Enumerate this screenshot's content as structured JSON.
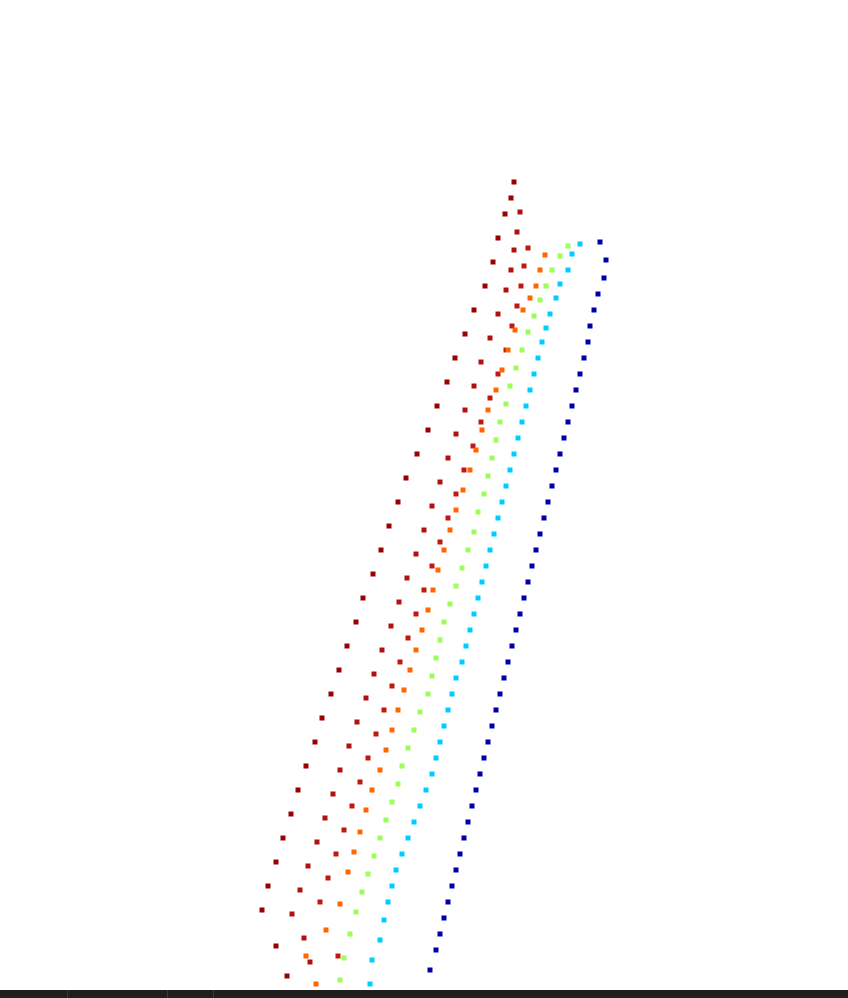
{
  "chart_data": {
    "type": "scatter",
    "title": "",
    "xlabel": "",
    "ylabel": "",
    "grid": false,
    "legend": "none",
    "marker": "square",
    "colormap": "jet",
    "series": [
      {
        "color": "#990000",
        "points": [
          [
            514,
            182
          ],
          [
            511,
            198
          ],
          [
            505,
            214
          ],
          [
            498,
            238
          ],
          [
            493,
            262
          ],
          [
            485,
            286
          ],
          [
            474,
            310
          ],
          [
            465,
            334
          ],
          [
            455,
            358
          ],
          [
            447,
            382
          ],
          [
            437,
            406
          ],
          [
            428,
            430
          ],
          [
            417,
            454
          ],
          [
            406,
            478
          ],
          [
            398,
            502
          ],
          [
            389,
            526
          ],
          [
            381,
            550
          ],
          [
            373,
            574
          ],
          [
            363,
            598
          ],
          [
            356,
            622
          ],
          [
            347,
            646
          ],
          [
            339,
            670
          ],
          [
            331,
            694
          ],
          [
            322,
            718
          ],
          [
            315,
            742
          ],
          [
            306,
            766
          ],
          [
            298,
            790
          ],
          [
            291,
            814
          ],
          [
            283,
            838
          ],
          [
            276,
            862
          ],
          [
            268,
            886
          ],
          [
            262,
            910
          ],
          [
            276,
            946
          ],
          [
            287,
            976
          ]
        ]
      },
      {
        "color": "#b01010",
        "points": [
          [
            520,
            212
          ],
          [
            517,
            232
          ],
          [
            514,
            250
          ],
          [
            511,
            270
          ],
          [
            506,
            290
          ],
          [
            498,
            314
          ],
          [
            490,
            338
          ],
          [
            481,
            362
          ],
          [
            474,
            386
          ],
          [
            465,
            410
          ],
          [
            456,
            434
          ],
          [
            448,
            458
          ],
          [
            440,
            482
          ],
          [
            432,
            506
          ],
          [
            424,
            530
          ],
          [
            416,
            554
          ],
          [
            407,
            578
          ],
          [
            399,
            602
          ],
          [
            391,
            626
          ],
          [
            382,
            650
          ],
          [
            374,
            674
          ],
          [
            366,
            698
          ],
          [
            357,
            722
          ],
          [
            349,
            746
          ],
          [
            340,
            770
          ],
          [
            333,
            794
          ],
          [
            325,
            818
          ],
          [
            317,
            842
          ],
          [
            308,
            866
          ],
          [
            300,
            890
          ],
          [
            292,
            914
          ],
          [
            304,
            938
          ],
          [
            310,
            962
          ]
        ]
      },
      {
        "color": "#c01a10",
        "points": [
          [
            528,
            248
          ],
          [
            524,
            266
          ],
          [
            521,
            286
          ],
          [
            517,
            306
          ],
          [
            512,
            326
          ],
          [
            506,
            350
          ],
          [
            498,
            374
          ],
          [
            490,
            398
          ],
          [
            481,
            422
          ],
          [
            473,
            446
          ],
          [
            464,
            470
          ],
          [
            456,
            494
          ],
          [
            448,
            518
          ],
          [
            440,
            542
          ],
          [
            432,
            566
          ],
          [
            424,
            590
          ],
          [
            416,
            614
          ],
          [
            408,
            638
          ],
          [
            400,
            662
          ],
          [
            392,
            686
          ],
          [
            384,
            710
          ],
          [
            376,
            734
          ],
          [
            368,
            758
          ],
          [
            360,
            782
          ],
          [
            352,
            806
          ],
          [
            344,
            830
          ],
          [
            336,
            854
          ],
          [
            328,
            878
          ],
          [
            320,
            902
          ],
          [
            326,
            930
          ],
          [
            338,
            956
          ]
        ]
      },
      {
        "color": "#ff6600",
        "points": [
          [
            545,
            255
          ],
          [
            540,
            270
          ],
          [
            536,
            286
          ],
          [
            530,
            298
          ],
          [
            523,
            310
          ],
          [
            515,
            330
          ],
          [
            508,
            350
          ],
          [
            502,
            370
          ],
          [
            496,
            390
          ],
          [
            488,
            410
          ],
          [
            482,
            430
          ],
          [
            476,
            450
          ],
          [
            470,
            470
          ],
          [
            463,
            490
          ],
          [
            456,
            510
          ],
          [
            450,
            530
          ],
          [
            444,
            550
          ],
          [
            438,
            570
          ],
          [
            433,
            590
          ],
          [
            428,
            610
          ],
          [
            422,
            630
          ],
          [
            416,
            650
          ],
          [
            410,
            670
          ],
          [
            404,
            690
          ],
          [
            398,
            710
          ],
          [
            392,
            730
          ],
          [
            386,
            750
          ],
          [
            380,
            770
          ],
          [
            372,
            790
          ],
          [
            366,
            810
          ],
          [
            360,
            832
          ],
          [
            354,
            852
          ],
          [
            348,
            872
          ],
          [
            340,
            904
          ],
          [
            326,
            930
          ],
          [
            306,
            956
          ],
          [
            316,
            984
          ]
        ]
      },
      {
        "color": "#99ff55",
        "points": [
          [
            568,
            246
          ],
          [
            560,
            256
          ],
          [
            552,
            270
          ],
          [
            546,
            286
          ],
          [
            540,
            300
          ],
          [
            534,
            316
          ],
          [
            528,
            332
          ],
          [
            522,
            350
          ],
          [
            516,
            368
          ],
          [
            510,
            386
          ],
          [
            506,
            404
          ],
          [
            500,
            422
          ],
          [
            496,
            440
          ],
          [
            492,
            458
          ],
          [
            488,
            476
          ],
          [
            484,
            494
          ],
          [
            478,
            512
          ],
          [
            474,
            532
          ],
          [
            468,
            550
          ],
          [
            462,
            568
          ],
          [
            456,
            586
          ],
          [
            450,
            604
          ],
          [
            444,
            622
          ],
          [
            440,
            640
          ],
          [
            436,
            658
          ],
          [
            432,
            676
          ],
          [
            428,
            694
          ],
          [
            420,
            712
          ],
          [
            414,
            730
          ],
          [
            408,
            748
          ],
          [
            402,
            766
          ],
          [
            398,
            784
          ],
          [
            392,
            802
          ],
          [
            386,
            820
          ],
          [
            380,
            838
          ],
          [
            374,
            856
          ],
          [
            368,
            874
          ],
          [
            362,
            892
          ],
          [
            356,
            912
          ],
          [
            350,
            934
          ],
          [
            344,
            958
          ],
          [
            340,
            980
          ]
        ]
      },
      {
        "color": "#00ccff",
        "points": [
          [
            580,
            244
          ],
          [
            572,
            254
          ],
          [
            568,
            270
          ],
          [
            560,
            284
          ],
          [
            556,
            298
          ],
          [
            550,
            314
          ],
          [
            546,
            328
          ],
          [
            542,
            342
          ],
          [
            538,
            358
          ],
          [
            534,
            374
          ],
          [
            530,
            390
          ],
          [
            526,
            406
          ],
          [
            522,
            422
          ],
          [
            518,
            438
          ],
          [
            514,
            454
          ],
          [
            510,
            470
          ],
          [
            506,
            486
          ],
          [
            502,
            502
          ],
          [
            498,
            518
          ],
          [
            494,
            534
          ],
          [
            490,
            550
          ],
          [
            486,
            566
          ],
          [
            482,
            582
          ],
          [
            478,
            598
          ],
          [
            474,
            614
          ],
          [
            470,
            630
          ],
          [
            466,
            646
          ],
          [
            462,
            662
          ],
          [
            456,
            678
          ],
          [
            452,
            694
          ],
          [
            448,
            710
          ],
          [
            444,
            726
          ],
          [
            440,
            742
          ],
          [
            436,
            758
          ],
          [
            432,
            774
          ],
          [
            426,
            790
          ],
          [
            420,
            806
          ],
          [
            414,
            822
          ],
          [
            408,
            838
          ],
          [
            402,
            854
          ],
          [
            396,
            870
          ],
          [
            392,
            886
          ],
          [
            388,
            902
          ],
          [
            384,
            920
          ],
          [
            380,
            940
          ],
          [
            372,
            960
          ],
          [
            370,
            984
          ]
        ]
      },
      {
        "color": "#0000aa",
        "points": [
          [
            600,
            242
          ],
          [
            606,
            260
          ],
          [
            604,
            278
          ],
          [
            598,
            294
          ],
          [
            594,
            310
          ],
          [
            590,
            326
          ],
          [
            588,
            342
          ],
          [
            584,
            358
          ],
          [
            580,
            374
          ],
          [
            576,
            390
          ],
          [
            572,
            406
          ],
          [
            568,
            422
          ],
          [
            564,
            438
          ],
          [
            560,
            454
          ],
          [
            556,
            470
          ],
          [
            552,
            486
          ],
          [
            548,
            502
          ],
          [
            544,
            518
          ],
          [
            540,
            534
          ],
          [
            536,
            550
          ],
          [
            532,
            566
          ],
          [
            528,
            582
          ],
          [
            524,
            598
          ],
          [
            520,
            614
          ],
          [
            516,
            630
          ],
          [
            512,
            646
          ],
          [
            508,
            662
          ],
          [
            504,
            678
          ],
          [
            500,
            694
          ],
          [
            496,
            710
          ],
          [
            492,
            726
          ],
          [
            488,
            742
          ],
          [
            484,
            758
          ],
          [
            480,
            774
          ],
          [
            476,
            790
          ],
          [
            472,
            806
          ],
          [
            468,
            822
          ],
          [
            464,
            838
          ],
          [
            460,
            854
          ],
          [
            456,
            870
          ],
          [
            452,
            886
          ],
          [
            448,
            902
          ],
          [
            444,
            918
          ],
          [
            440,
            934
          ],
          [
            436,
            950
          ],
          [
            430,
            970
          ]
        ]
      }
    ]
  }
}
